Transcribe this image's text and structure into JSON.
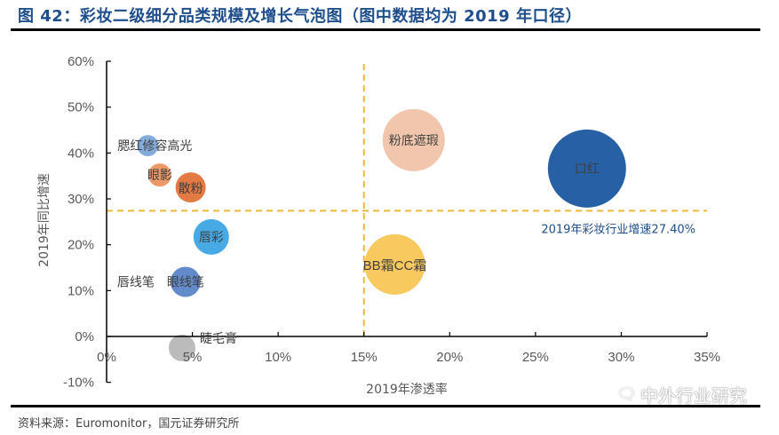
{
  "header": {
    "title": "图 42：彩妆二级细分品类规模及增长气泡图（图中数据均为 2019 年口径）"
  },
  "footer": {
    "source": "资料来源：Euromonitor，国元证券研究所",
    "watermark": "中外行业研究",
    "watermark_icon": "wechat-icon"
  },
  "chart_data": {
    "type": "scatter",
    "subtype": "bubble",
    "title": "彩妆二级细分品类规模及增长气泡图",
    "xlabel": "2019年渗透率",
    "ylabel": "2019年同比增速",
    "xlim": [
      0,
      35
    ],
    "ylim": [
      -10,
      60
    ],
    "x_ticks": [
      0,
      5,
      10,
      15,
      20,
      25,
      30,
      35
    ],
    "x_tick_labels": [
      "0%",
      "5%",
      "10%",
      "15%",
      "20%",
      "25%",
      "30%",
      "35%"
    ],
    "y_ticks": [
      -10,
      0,
      10,
      20,
      30,
      40,
      50,
      60
    ],
    "y_tick_labels": [
      "-10%",
      "0%",
      "10%",
      "20%",
      "30%",
      "40%",
      "50%",
      "60%"
    ],
    "grid": false,
    "series": [
      {
        "name": "腮红修容高光",
        "x": 2.4,
        "y": 41.6,
        "size": 12,
        "color": "#7ea6d8"
      },
      {
        "name": "眼影",
        "x": 3.1,
        "y": 35.2,
        "size": 13,
        "color": "#e9935f"
      },
      {
        "name": "散粉",
        "x": 4.9,
        "y": 32.5,
        "size": 17,
        "color": "#e2733a"
      },
      {
        "name": "唇彩",
        "x": 6.1,
        "y": 21.7,
        "size": 20,
        "color": "#3da5e3"
      },
      {
        "name": "眼线笔",
        "x": 4.6,
        "y": 11.9,
        "size": 17,
        "color": "#5b84c8"
      },
      {
        "name": "唇线笔",
        "x": 0.1,
        "y": 11.9,
        "size": 0,
        "color": "#d0d0d0"
      },
      {
        "name": "睫毛膏",
        "x": 4.4,
        "y": -2.5,
        "size": 15,
        "color": "#b7b7b7"
      },
      {
        "name": "粉底遮瑕",
        "x": 17.9,
        "y": 42.8,
        "size": 35,
        "color": "#f1c3a8"
      },
      {
        "name": "口红",
        "x": 28.0,
        "y": 36.6,
        "size": 44,
        "color": "#1b57a0"
      },
      {
        "name": "BB霜CC霜",
        "x": 16.8,
        "y": 15.7,
        "size": 34,
        "color": "#f8c655"
      }
    ],
    "reference_lines": [
      {
        "orientation": "horizontal",
        "value": 27.4,
        "label": "2019年彩妆行业增速27.40%",
        "color": "#f0b73a"
      },
      {
        "orientation": "vertical",
        "value": 15,
        "label": "",
        "color": "#f0b73a"
      }
    ]
  }
}
